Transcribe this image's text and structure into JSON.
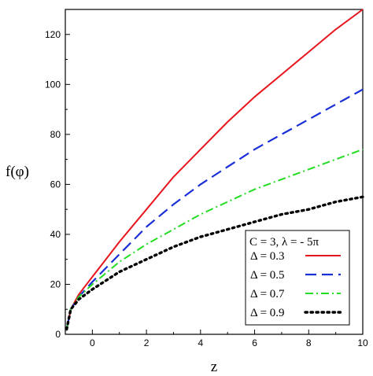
{
  "chart_data": {
    "type": "line",
    "xlabel": "z",
    "ylabel": "f(φ)",
    "xlim": [
      -1,
      10
    ],
    "ylim": [
      0,
      130
    ],
    "x_ticks": [
      0,
      2,
      4,
      6,
      8,
      10
    ],
    "y_ticks": [
      0,
      20,
      40,
      60,
      80,
      100,
      120
    ],
    "legend_title": "C = 3, λ = - 5π",
    "legend_position": "bottom-right",
    "grid": false,
    "series": [
      {
        "name": "Δ = 0.3",
        "color": "#e8141c",
        "dash": "solid",
        "x": [
          -0.95,
          -0.8,
          -0.5,
          0,
          1,
          2,
          3,
          4,
          5,
          6,
          7,
          8,
          9,
          10
        ],
        "y": [
          2,
          10,
          16,
          23,
          37,
          50,
          63,
          74,
          85,
          95,
          104,
          113,
          122,
          130
        ]
      },
      {
        "name": "Δ = 0.5",
        "color": "#1a2fd8",
        "dash": "long-dash",
        "x": [
          -0.95,
          -0.8,
          -0.5,
          0,
          1,
          2,
          3,
          4,
          5,
          6,
          7,
          8,
          9,
          10
        ],
        "y": [
          2,
          10,
          15,
          21,
          32,
          43,
          52,
          60,
          67,
          74,
          80,
          86,
          92,
          98
        ]
      },
      {
        "name": "Δ = 0.7",
        "color": "#22dd22",
        "dash": "dash-dot",
        "x": [
          -0.95,
          -0.8,
          -0.5,
          0,
          1,
          2,
          3,
          4,
          5,
          6,
          7,
          8,
          9,
          10
        ],
        "y": [
          2,
          10,
          15,
          20,
          29,
          36,
          42,
          48,
          53,
          58,
          62,
          66,
          70,
          74
        ]
      },
      {
        "name": "Δ = 0.9",
        "color": "#000000",
        "dash": "dotted",
        "x": [
          -0.95,
          -0.8,
          -0.5,
          0,
          1,
          2,
          3,
          4,
          5,
          6,
          7,
          8,
          9,
          10
        ],
        "y": [
          2,
          10,
          14,
          18,
          25,
          30,
          35,
          39,
          42,
          45,
          48,
          50,
          53,
          55
        ]
      }
    ]
  }
}
